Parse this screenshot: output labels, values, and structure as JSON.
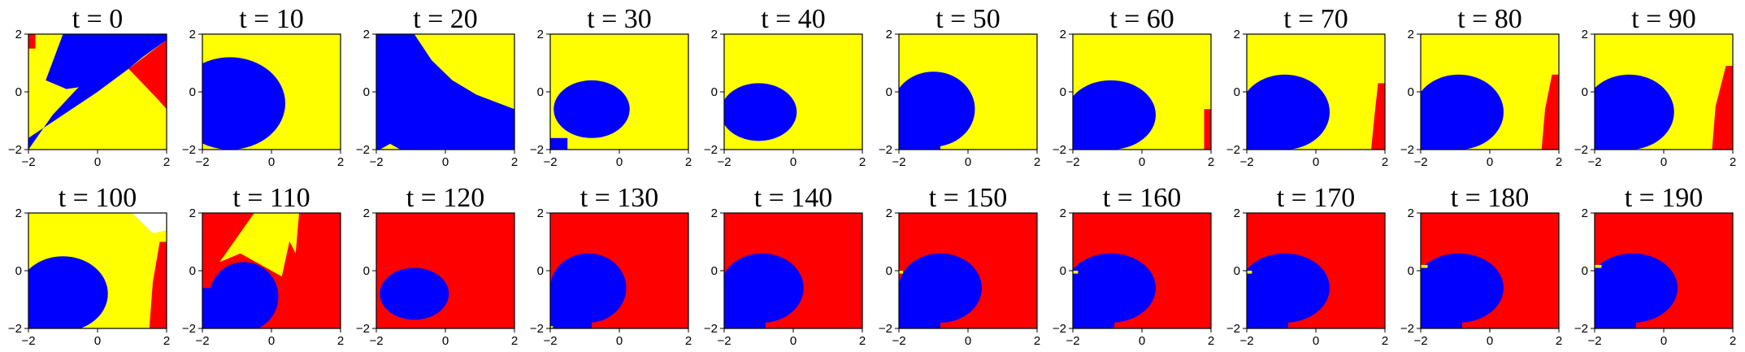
{
  "colors": {
    "yellow": "#ffff00",
    "blue": "#0000ff",
    "red": "#ff0000",
    "white": "#ffffff"
  },
  "chart_data": {
    "type": "heatmap",
    "grid_rows": 2,
    "grid_cols": 10,
    "xlim": [
      -2,
      2
    ],
    "ylim": [
      -2,
      2
    ],
    "xticks": [
      -2,
      0,
      2
    ],
    "yticks": [
      -2,
      0,
      2
    ],
    "xtick_labels": [
      "−2",
      "0",
      "2"
    ],
    "ytick_labels": [
      "−2",
      "0",
      "2"
    ],
    "panels": [
      {
        "title": "t = 0",
        "bg": "yellow",
        "regions": [
          {
            "color": "blue",
            "polygon": [
              [
                -2,
                -1.6
              ],
              [
                -1.0,
                -0.8
              ],
              [
                0,
                0
              ],
              [
                0.9,
                0.8
              ],
              [
                1.4,
                1.3
              ],
              [
                2,
                1.8
              ],
              [
                2,
                2
              ],
              [
                1.4,
                2
              ],
              [
                0.8,
                1.6
              ],
              [
                0.2,
                0.9
              ],
              [
                -0.6,
                0.1
              ],
              [
                -1.3,
                -0.8
              ],
              [
                -2,
                -2
              ]
            ]
          },
          {
            "color": "blue",
            "polygon": [
              [
                -1.5,
                0.4
              ],
              [
                -1.0,
                2
              ],
              [
                2,
                2
              ],
              [
                2,
                1.8
              ],
              [
                1.3,
                1.2
              ],
              [
                0.5,
                0.6
              ],
              [
                -0.3,
                0.2
              ],
              [
                -0.9,
                0.1
              ]
            ]
          },
          {
            "color": "red",
            "polygon": [
              [
                0.9,
                0.8
              ],
              [
                2,
                1.8
              ],
              [
                2,
                -0.6
              ],
              [
                1.7,
                -0.2
              ]
            ]
          },
          {
            "color": "red",
            "polygon": [
              [
                -2,
                1.5
              ],
              [
                -1.8,
                1.5
              ],
              [
                -1.8,
                2
              ],
              [
                -2,
                2
              ]
            ]
          }
        ]
      },
      {
        "title": "t = 10",
        "bg": "yellow",
        "regions": [
          {
            "color": "blue",
            "circle": [
              -1.2,
              -0.4,
              1.6,
              1.6
            ]
          }
        ]
      },
      {
        "title": "t = 20",
        "bg": "yellow",
        "regions": [
          {
            "color": "blue",
            "polygon": [
              [
                -2,
                2
              ],
              [
                -0.9,
                2
              ],
              [
                -0.4,
                1.1
              ],
              [
                0.2,
                0.4
              ],
              [
                0.9,
                -0.1
              ],
              [
                2,
                -0.6
              ],
              [
                2,
                -2
              ],
              [
                -2,
                -2
              ]
            ]
          },
          {
            "color": "yellow",
            "polygon": [
              [
                -1.9,
                -2
              ],
              [
                -1.6,
                -1.8
              ],
              [
                -1.3,
                -2
              ]
            ]
          }
        ]
      },
      {
        "title": "t = 30",
        "bg": "yellow",
        "regions": [
          {
            "color": "blue",
            "circle": [
              -0.8,
              -0.6,
              1.1,
              1.0
            ]
          },
          {
            "color": "blue",
            "rect": [
              -2,
              -2,
              0.5,
              0.4
            ]
          }
        ]
      },
      {
        "title": "t = 40",
        "bg": "yellow",
        "regions": [
          {
            "color": "blue",
            "circle": [
              -1.0,
              -0.7,
              1.1,
              1.0
            ]
          }
        ]
      },
      {
        "title": "t = 50",
        "bg": "yellow",
        "regions": [
          {
            "color": "blue",
            "circle": [
              -1.0,
              -0.6,
              1.2,
              1.3
            ]
          },
          {
            "color": "blue",
            "rect": [
              -2,
              -2,
              1.2,
              1.4
            ]
          }
        ]
      },
      {
        "title": "t = 60",
        "bg": "yellow",
        "regions": [
          {
            "color": "blue",
            "circle": [
              -0.9,
              -0.8,
              1.3,
              1.2
            ]
          },
          {
            "color": "blue",
            "rect": [
              -2,
              -2,
              1.2,
              1.4
            ]
          },
          {
            "color": "red",
            "polygon": [
              [
                1.8,
                -2
              ],
              [
                2,
                -2
              ],
              [
                2,
                -0.6
              ],
              [
                1.8,
                -0.6
              ]
            ]
          }
        ]
      },
      {
        "title": "t = 70",
        "bg": "yellow",
        "regions": [
          {
            "color": "blue",
            "circle": [
              -0.9,
              -0.7,
              1.3,
              1.3
            ]
          },
          {
            "color": "blue",
            "rect": [
              -2,
              -2,
              1.2,
              1.4
            ]
          },
          {
            "color": "red",
            "polygon": [
              [
                1.6,
                -2
              ],
              [
                2,
                -2
              ],
              [
                2,
                0.3
              ],
              [
                1.8,
                0.3
              ],
              [
                1.7,
                -0.8
              ]
            ]
          }
        ]
      },
      {
        "title": "t = 80",
        "bg": "yellow",
        "regions": [
          {
            "color": "blue",
            "circle": [
              -0.9,
              -0.7,
              1.3,
              1.3
            ]
          },
          {
            "color": "blue",
            "rect": [
              -2,
              -2,
              1.2,
              1.4
            ]
          },
          {
            "color": "red",
            "polygon": [
              [
                1.5,
                -2
              ],
              [
                2,
                -2
              ],
              [
                2,
                0.6
              ],
              [
                1.8,
                0.6
              ],
              [
                1.6,
                -0.6
              ]
            ]
          }
        ]
      },
      {
        "title": "t = 90",
        "bg": "yellow",
        "regions": [
          {
            "color": "blue",
            "circle": [
              -1.0,
              -0.7,
              1.3,
              1.3
            ]
          },
          {
            "color": "blue",
            "rect": [
              -2,
              -2,
              1.2,
              1.4
            ]
          },
          {
            "color": "red",
            "polygon": [
              [
                1.4,
                -2
              ],
              [
                2,
                -2
              ],
              [
                2,
                0.9
              ],
              [
                1.8,
                0.9
              ],
              [
                1.5,
                -0.5
              ]
            ]
          }
        ]
      },
      {
        "title": "t = 100",
        "bg": "yellow",
        "regions": [
          {
            "color": "blue",
            "circle": [
              -1.0,
              -0.8,
              1.3,
              1.3
            ]
          },
          {
            "color": "blue",
            "rect": [
              -2,
              -2,
              1.0,
              1.2
            ]
          },
          {
            "color": "white",
            "polygon": [
              [
                0.6,
                2
              ],
              [
                2,
                2
              ],
              [
                2,
                1.4
              ],
              [
                1.6,
                1.3
              ],
              [
                1.0,
                2
              ]
            ]
          },
          {
            "color": "red",
            "polygon": [
              [
                1.5,
                -2
              ],
              [
                2,
                -2
              ],
              [
                2,
                1.0
              ],
              [
                1.8,
                1.0
              ],
              [
                1.6,
                -0.4
              ]
            ]
          }
        ]
      },
      {
        "title": "t = 110",
        "bg": "red",
        "regions": [
          {
            "color": "yellow",
            "polygon": [
              [
                -1.5,
                0.3
              ],
              [
                -0.5,
                2
              ],
              [
                0.7,
                2
              ],
              [
                0.3,
                -0.2
              ],
              [
                -0.9,
                0.6
              ]
            ]
          },
          {
            "color": "yellow",
            "polygon": [
              [
                0.1,
                2
              ],
              [
                0.8,
                2
              ],
              [
                0.7,
                0.6
              ]
            ]
          },
          {
            "color": "blue",
            "circle": [
              -0.8,
              -0.9,
              1.0,
              1.2
            ]
          },
          {
            "color": "blue",
            "rect": [
              -2,
              -2,
              1.2,
              1.4
            ]
          }
        ]
      },
      {
        "title": "t = 120",
        "bg": "red",
        "regions": [
          {
            "color": "blue",
            "circle": [
              -0.9,
              -0.8,
              1.0,
              0.9
            ]
          }
        ]
      },
      {
        "title": "t = 130",
        "bg": "red",
        "regions": [
          {
            "color": "blue",
            "circle": [
              -0.9,
              -0.6,
              1.1,
              1.2
            ]
          },
          {
            "color": "blue",
            "rect": [
              -2,
              -2,
              1.2,
              1.4
            ]
          },
          {
            "color": "yellow",
            "rect": [
              -2,
              -2,
              0.08,
              0.08
            ]
          }
        ]
      },
      {
        "title": "t = 140",
        "bg": "red",
        "regions": [
          {
            "color": "blue",
            "circle": [
              -0.9,
              -0.6,
              1.2,
              1.2
            ]
          },
          {
            "color": "blue",
            "rect": [
              -2,
              -2,
              1.2,
              1.4
            ]
          }
        ]
      },
      {
        "title": "t = 150",
        "bg": "red",
        "regions": [
          {
            "color": "blue",
            "circle": [
              -0.8,
              -0.6,
              1.2,
              1.2
            ]
          },
          {
            "color": "blue",
            "rect": [
              -2,
              -2,
              1.2,
              1.4
            ]
          },
          {
            "color": "yellow",
            "rect": [
              -2,
              -0.1,
              0.12,
              0.1
            ]
          }
        ]
      },
      {
        "title": "t = 160",
        "bg": "red",
        "regions": [
          {
            "color": "blue",
            "circle": [
              -0.9,
              -0.6,
              1.3,
              1.2
            ]
          },
          {
            "color": "blue",
            "rect": [
              -2,
              -2,
              1.2,
              1.4
            ]
          },
          {
            "color": "yellow",
            "rect": [
              -2,
              -0.1,
              0.15,
              0.1
            ]
          }
        ]
      },
      {
        "title": "t = 170",
        "bg": "red",
        "regions": [
          {
            "color": "blue",
            "circle": [
              -0.9,
              -0.6,
              1.3,
              1.2
            ]
          },
          {
            "color": "blue",
            "rect": [
              -2,
              -2,
              1.2,
              1.4
            ]
          },
          {
            "color": "yellow",
            "rect": [
              -2,
              -0.1,
              0.15,
              0.1
            ]
          }
        ]
      },
      {
        "title": "t = 180",
        "bg": "red",
        "regions": [
          {
            "color": "blue",
            "circle": [
              -0.9,
              -0.6,
              1.3,
              1.2
            ]
          },
          {
            "color": "blue",
            "rect": [
              -2,
              -2,
              1.2,
              1.4
            ]
          },
          {
            "color": "yellow",
            "rect": [
              -2,
              0.1,
              0.2,
              0.1
            ]
          }
        ]
      },
      {
        "title": "t = 190",
        "bg": "red",
        "regions": [
          {
            "color": "blue",
            "circle": [
              -0.9,
              -0.6,
              1.3,
              1.2
            ]
          },
          {
            "color": "blue",
            "rect": [
              -2,
              -2,
              1.2,
              1.4
            ]
          },
          {
            "color": "yellow",
            "rect": [
              -2,
              0.1,
              0.2,
              0.1
            ]
          }
        ]
      }
    ]
  }
}
